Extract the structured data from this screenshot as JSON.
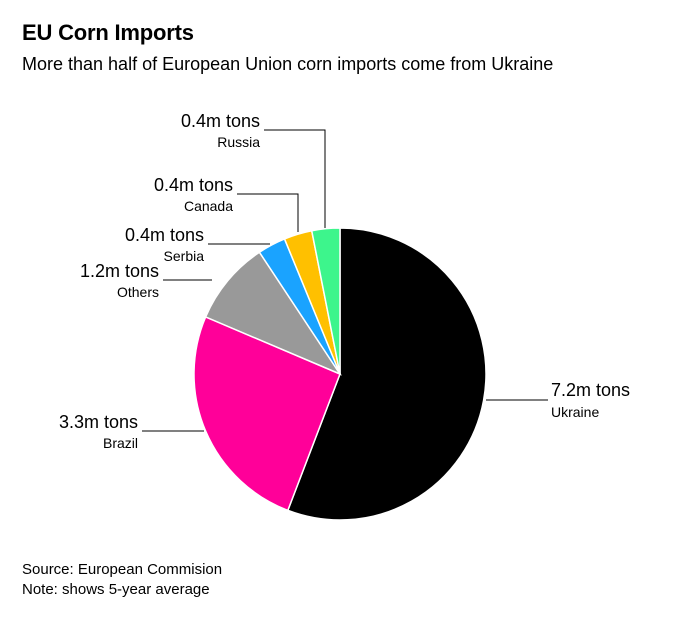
{
  "header": {
    "title": "EU Corn Imports",
    "subtitle": "More than half of European Union corn imports come from Ukraine"
  },
  "footer": {
    "source": "Source: European Commision",
    "note": "Note: shows 5-year average"
  },
  "chart_data": {
    "type": "pie",
    "title": "EU Corn Imports",
    "subtitle": "More than half of European Union corn imports come from Ukraine",
    "unit": "m tons",
    "start": "12 o'clock",
    "direction": "clockwise",
    "slices": [
      {
        "label": "Ukraine",
        "value": 7.2,
        "value_label": "7.2m tons",
        "color": "#000000"
      },
      {
        "label": "Brazil",
        "value": 3.3,
        "value_label": "3.3m tons",
        "color": "#ff0099"
      },
      {
        "label": "Others",
        "value": 1.2,
        "value_label": "1.2m tons",
        "color": "#999999"
      },
      {
        "label": "Serbia",
        "value": 0.4,
        "value_label": "0.4m tons",
        "color": "#1aa3ff"
      },
      {
        "label": "Canada",
        "value": 0.4,
        "value_label": "0.4m tons",
        "color": "#ffc000"
      },
      {
        "label": "Russia",
        "value": 0.4,
        "value_label": "0.4m tons",
        "color": "#3df58c"
      }
    ]
  }
}
